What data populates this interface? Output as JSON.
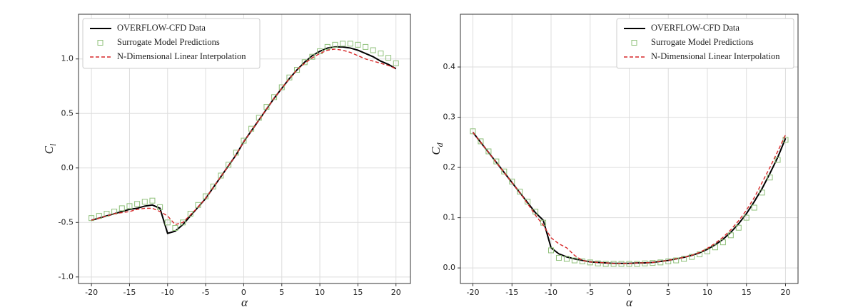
{
  "chart_data": [
    {
      "type": "line",
      "xlabel": "α",
      "ylabel": "C",
      "ylabel_sub": "l",
      "x": [
        -20,
        -19,
        -18,
        -17,
        -16,
        -15,
        -14,
        -13,
        -12,
        -11,
        -10,
        -9,
        -8,
        -7,
        -6,
        -5,
        -4,
        -3,
        -2,
        -1,
        0,
        1,
        2,
        3,
        4,
        5,
        6,
        7,
        8,
        9,
        10,
        11,
        12,
        13,
        14,
        15,
        16,
        17,
        18,
        19,
        20
      ],
      "xlim": [
        -21.7,
        21.9
      ],
      "xticks": [
        -20,
        -15,
        -10,
        -5,
        0,
        5,
        10,
        15,
        20
      ],
      "ylim": [
        -1.06,
        1.41
      ],
      "yticks": [
        {
          "value": -1.0,
          "label": "-1.0"
        },
        -0.5,
        {
          "value": 0,
          "label": "0.0"
        },
        0.5,
        {
          "value": 1.0,
          "label": "1.0"
        }
      ],
      "grid": true,
      "legend": "upper left",
      "series": [
        {
          "name": "OVERFLOW-CFD Data",
          "color": "#000000",
          "style": "solid",
          "values": [
            -0.48,
            -0.46,
            -0.44,
            -0.42,
            -0.4,
            -0.38,
            -0.37,
            -0.35,
            -0.34,
            -0.37,
            -0.6,
            -0.58,
            -0.52,
            -0.44,
            -0.36,
            -0.28,
            -0.18,
            -0.08,
            0.02,
            0.12,
            0.24,
            0.34,
            0.44,
            0.54,
            0.64,
            0.73,
            0.82,
            0.9,
            0.97,
            1.03,
            1.07,
            1.1,
            1.11,
            1.11,
            1.1,
            1.08,
            1.05,
            1.02,
            0.98,
            0.95,
            0.91
          ]
        },
        {
          "name": "Surrogate Model Predictions",
          "color": "#8fc07a",
          "style": "marker",
          "values": [
            -0.46,
            -0.44,
            -0.42,
            -0.4,
            -0.37,
            -0.35,
            -0.33,
            -0.31,
            -0.3,
            -0.36,
            -0.5,
            -0.55,
            -0.5,
            -0.42,
            -0.34,
            -0.26,
            -0.17,
            -0.07,
            0.03,
            0.14,
            0.25,
            0.36,
            0.46,
            0.56,
            0.65,
            0.74,
            0.83,
            0.9,
            0.97,
            1.02,
            1.07,
            1.11,
            1.13,
            1.14,
            1.14,
            1.13,
            1.11,
            1.08,
            1.05,
            1.01,
            0.96
          ]
        },
        {
          "name": "N-Dimensional Linear Interpolation",
          "color": "#d62728",
          "style": "dashed",
          "values": [
            -0.48,
            -0.46,
            -0.44,
            -0.42,
            -0.41,
            -0.4,
            -0.38,
            -0.37,
            -0.37,
            -0.4,
            -0.44,
            -0.52,
            -0.5,
            -0.43,
            -0.36,
            -0.28,
            -0.18,
            -0.08,
            0.02,
            0.12,
            0.24,
            0.34,
            0.44,
            0.54,
            0.64,
            0.73,
            0.82,
            0.9,
            0.96,
            1.01,
            1.05,
            1.08,
            1.09,
            1.08,
            1.06,
            1.03,
            1.0,
            0.98,
            0.96,
            0.94,
            0.91
          ]
        }
      ]
    },
    {
      "type": "line",
      "xlabel": "α",
      "ylabel": "C",
      "ylabel_sub": "d",
      "x": [
        -20,
        -19,
        -18,
        -17,
        -16,
        -15,
        -14,
        -13,
        -12,
        -11,
        -10,
        -9,
        -8,
        -7,
        -6,
        -5,
        -4,
        -3,
        -2,
        -1,
        0,
        1,
        2,
        3,
        4,
        5,
        6,
        7,
        8,
        9,
        10,
        11,
        12,
        13,
        14,
        15,
        16,
        17,
        18,
        19,
        20
      ],
      "xlim": [
        -21.6,
        21.6
      ],
      "xticks": [
        -20,
        -15,
        -10,
        -5,
        0,
        5,
        10,
        15,
        20
      ],
      "ylim": [
        -0.031,
        0.505
      ],
      "yticks": [
        {
          "value": 0,
          "label": "0.0"
        },
        0.1,
        0.2,
        0.3,
        0.4
      ],
      "grid": true,
      "legend": "upper right",
      "series": [
        {
          "name": "OVERFLOW-CFD Data",
          "color": "#000000",
          "style": "solid",
          "values": [
            0.27,
            0.25,
            0.23,
            0.21,
            0.19,
            0.17,
            0.15,
            0.13,
            0.11,
            0.095,
            0.04,
            0.028,
            0.022,
            0.018,
            0.015,
            0.012,
            0.011,
            0.01,
            0.009,
            0.009,
            0.009,
            0.01,
            0.01,
            0.011,
            0.013,
            0.015,
            0.018,
            0.021,
            0.025,
            0.03,
            0.037,
            0.046,
            0.057,
            0.071,
            0.088,
            0.108,
            0.132,
            0.158,
            0.188,
            0.22,
            0.258
          ]
        },
        {
          "name": "Surrogate Model Predictions",
          "color": "#8fc07a",
          "style": "marker",
          "values": [
            0.272,
            0.252,
            0.232,
            0.212,
            0.192,
            0.172,
            0.152,
            0.132,
            0.112,
            0.09,
            0.035,
            0.02,
            0.018,
            0.015,
            0.013,
            0.011,
            0.009,
            0.008,
            0.008,
            0.008,
            0.008,
            0.008,
            0.009,
            0.01,
            0.011,
            0.013,
            0.015,
            0.018,
            0.022,
            0.027,
            0.033,
            0.041,
            0.051,
            0.065,
            0.08,
            0.1,
            0.12,
            0.15,
            0.18,
            0.215,
            0.255
          ]
        },
        {
          "name": "N-Dimensional Linear Interpolation",
          "color": "#d62728",
          "style": "dashed",
          "values": [
            0.27,
            0.25,
            0.23,
            0.21,
            0.19,
            0.17,
            0.15,
            0.128,
            0.105,
            0.085,
            0.06,
            0.048,
            0.04,
            0.025,
            0.015,
            0.012,
            0.011,
            0.01,
            0.009,
            0.009,
            0.009,
            0.01,
            0.01,
            0.011,
            0.013,
            0.015,
            0.018,
            0.021,
            0.025,
            0.031,
            0.039,
            0.049,
            0.061,
            0.076,
            0.094,
            0.115,
            0.14,
            0.17,
            0.2,
            0.232,
            0.265
          ]
        }
      ]
    }
  ]
}
